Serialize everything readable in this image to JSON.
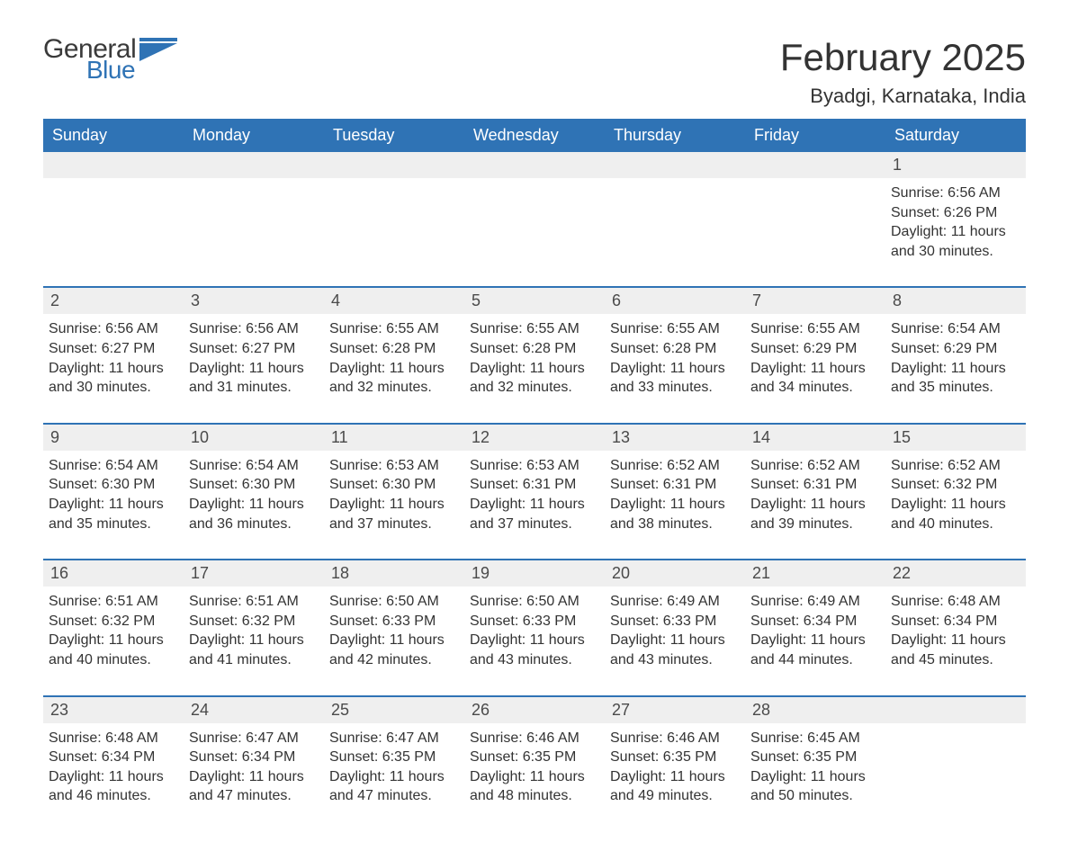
{
  "logo": {
    "text_general": "General",
    "text_blue": "Blue"
  },
  "title": "February 2025",
  "location": "Byadgi, Karnataka, India",
  "colors": {
    "header_bg": "#2f73b5",
    "header_text": "#ffffff",
    "daynum_bg": "#efefef",
    "row_border": "#2f73b5",
    "body_text": "#333333",
    "page_bg": "#ffffff"
  },
  "typography": {
    "title_fontsize": 42,
    "location_fontsize": 22,
    "dow_fontsize": 18,
    "daynum_fontsize": 18,
    "details_fontsize": 16,
    "font_family": "Arial"
  },
  "days_of_week": [
    "Sunday",
    "Monday",
    "Tuesday",
    "Wednesday",
    "Thursday",
    "Friday",
    "Saturday"
  ],
  "weeks": [
    [
      null,
      null,
      null,
      null,
      null,
      null,
      {
        "n": "1",
        "sunrise": "Sunrise: 6:56 AM",
        "sunset": "Sunset: 6:26 PM",
        "daylight": "Daylight: 11 hours and 30 minutes."
      }
    ],
    [
      {
        "n": "2",
        "sunrise": "Sunrise: 6:56 AM",
        "sunset": "Sunset: 6:27 PM",
        "daylight": "Daylight: 11 hours and 30 minutes."
      },
      {
        "n": "3",
        "sunrise": "Sunrise: 6:56 AM",
        "sunset": "Sunset: 6:27 PM",
        "daylight": "Daylight: 11 hours and 31 minutes."
      },
      {
        "n": "4",
        "sunrise": "Sunrise: 6:55 AM",
        "sunset": "Sunset: 6:28 PM",
        "daylight": "Daylight: 11 hours and 32 minutes."
      },
      {
        "n": "5",
        "sunrise": "Sunrise: 6:55 AM",
        "sunset": "Sunset: 6:28 PM",
        "daylight": "Daylight: 11 hours and 32 minutes."
      },
      {
        "n": "6",
        "sunrise": "Sunrise: 6:55 AM",
        "sunset": "Sunset: 6:28 PM",
        "daylight": "Daylight: 11 hours and 33 minutes."
      },
      {
        "n": "7",
        "sunrise": "Sunrise: 6:55 AM",
        "sunset": "Sunset: 6:29 PM",
        "daylight": "Daylight: 11 hours and 34 minutes."
      },
      {
        "n": "8",
        "sunrise": "Sunrise: 6:54 AM",
        "sunset": "Sunset: 6:29 PM",
        "daylight": "Daylight: 11 hours and 35 minutes."
      }
    ],
    [
      {
        "n": "9",
        "sunrise": "Sunrise: 6:54 AM",
        "sunset": "Sunset: 6:30 PM",
        "daylight": "Daylight: 11 hours and 35 minutes."
      },
      {
        "n": "10",
        "sunrise": "Sunrise: 6:54 AM",
        "sunset": "Sunset: 6:30 PM",
        "daylight": "Daylight: 11 hours and 36 minutes."
      },
      {
        "n": "11",
        "sunrise": "Sunrise: 6:53 AM",
        "sunset": "Sunset: 6:30 PM",
        "daylight": "Daylight: 11 hours and 37 minutes."
      },
      {
        "n": "12",
        "sunrise": "Sunrise: 6:53 AM",
        "sunset": "Sunset: 6:31 PM",
        "daylight": "Daylight: 11 hours and 37 minutes."
      },
      {
        "n": "13",
        "sunrise": "Sunrise: 6:52 AM",
        "sunset": "Sunset: 6:31 PM",
        "daylight": "Daylight: 11 hours and 38 minutes."
      },
      {
        "n": "14",
        "sunrise": "Sunrise: 6:52 AM",
        "sunset": "Sunset: 6:31 PM",
        "daylight": "Daylight: 11 hours and 39 minutes."
      },
      {
        "n": "15",
        "sunrise": "Sunrise: 6:52 AM",
        "sunset": "Sunset: 6:32 PM",
        "daylight": "Daylight: 11 hours and 40 minutes."
      }
    ],
    [
      {
        "n": "16",
        "sunrise": "Sunrise: 6:51 AM",
        "sunset": "Sunset: 6:32 PM",
        "daylight": "Daylight: 11 hours and 40 minutes."
      },
      {
        "n": "17",
        "sunrise": "Sunrise: 6:51 AM",
        "sunset": "Sunset: 6:32 PM",
        "daylight": "Daylight: 11 hours and 41 minutes."
      },
      {
        "n": "18",
        "sunrise": "Sunrise: 6:50 AM",
        "sunset": "Sunset: 6:33 PM",
        "daylight": "Daylight: 11 hours and 42 minutes."
      },
      {
        "n": "19",
        "sunrise": "Sunrise: 6:50 AM",
        "sunset": "Sunset: 6:33 PM",
        "daylight": "Daylight: 11 hours and 43 minutes."
      },
      {
        "n": "20",
        "sunrise": "Sunrise: 6:49 AM",
        "sunset": "Sunset: 6:33 PM",
        "daylight": "Daylight: 11 hours and 43 minutes."
      },
      {
        "n": "21",
        "sunrise": "Sunrise: 6:49 AM",
        "sunset": "Sunset: 6:34 PM",
        "daylight": "Daylight: 11 hours and 44 minutes."
      },
      {
        "n": "22",
        "sunrise": "Sunrise: 6:48 AM",
        "sunset": "Sunset: 6:34 PM",
        "daylight": "Daylight: 11 hours and 45 minutes."
      }
    ],
    [
      {
        "n": "23",
        "sunrise": "Sunrise: 6:48 AM",
        "sunset": "Sunset: 6:34 PM",
        "daylight": "Daylight: 11 hours and 46 minutes."
      },
      {
        "n": "24",
        "sunrise": "Sunrise: 6:47 AM",
        "sunset": "Sunset: 6:34 PM",
        "daylight": "Daylight: 11 hours and 47 minutes."
      },
      {
        "n": "25",
        "sunrise": "Sunrise: 6:47 AM",
        "sunset": "Sunset: 6:35 PM",
        "daylight": "Daylight: 11 hours and 47 minutes."
      },
      {
        "n": "26",
        "sunrise": "Sunrise: 6:46 AM",
        "sunset": "Sunset: 6:35 PM",
        "daylight": "Daylight: 11 hours and 48 minutes."
      },
      {
        "n": "27",
        "sunrise": "Sunrise: 6:46 AM",
        "sunset": "Sunset: 6:35 PM",
        "daylight": "Daylight: 11 hours and 49 minutes."
      },
      {
        "n": "28",
        "sunrise": "Sunrise: 6:45 AM",
        "sunset": "Sunset: 6:35 PM",
        "daylight": "Daylight: 11 hours and 50 minutes."
      },
      null
    ]
  ]
}
